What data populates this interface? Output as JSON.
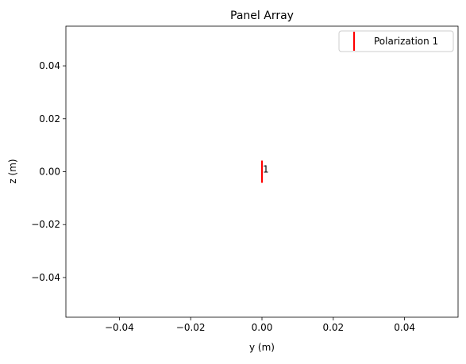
{
  "chart_data": {
    "type": "scatter",
    "title": "Panel Array",
    "xlabel": "y (m)",
    "ylabel": "z (m)",
    "xlim": [
      -0.055,
      0.055
    ],
    "ylim": [
      -0.055,
      0.055
    ],
    "x_ticks": [
      -0.04,
      -0.02,
      0.0,
      0.02,
      0.04
    ],
    "x_tick_labels": [
      "−0.04",
      "−0.02",
      "0.00",
      "0.02",
      "0.04"
    ],
    "y_ticks": [
      -0.04,
      -0.02,
      0.0,
      0.02,
      0.04
    ],
    "y_tick_labels": [
      "−0.04",
      "−0.02",
      "0.00",
      "0.02",
      "0.04"
    ],
    "grid": false,
    "legend": {
      "placement": "top-right",
      "entries": [
        {
          "label": "Polarization 1",
          "color": "#ff0000",
          "marker": "vertical-line"
        }
      ]
    },
    "series": [
      {
        "name": "Polarization 1",
        "color": "#ff0000",
        "marker": "vertical-line",
        "points": [
          {
            "x": 0.0,
            "y": 0.0,
            "label": "1"
          }
        ]
      }
    ]
  }
}
